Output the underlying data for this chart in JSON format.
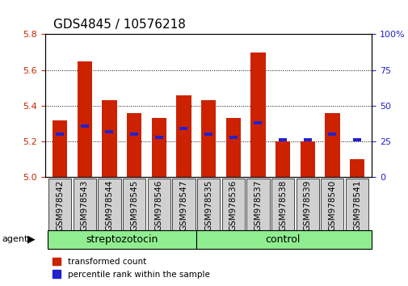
{
  "title": "GDS4845 / 10576218",
  "samples": [
    "GSM978542",
    "GSM978543",
    "GSM978544",
    "GSM978545",
    "GSM978546",
    "GSM978547",
    "GSM978535",
    "GSM978536",
    "GSM978537",
    "GSM978538",
    "GSM978539",
    "GSM978540",
    "GSM978541"
  ],
  "red_values": [
    5.32,
    5.65,
    5.43,
    5.36,
    5.33,
    5.46,
    5.43,
    5.33,
    5.7,
    5.2,
    5.2,
    5.36,
    5.1
  ],
  "blue_values_pct": [
    30,
    36,
    32,
    30,
    28,
    34,
    30,
    28,
    38,
    26,
    26,
    30,
    26
  ],
  "ylim_left": [
    5.0,
    5.8
  ],
  "ylim_right": [
    0,
    100
  ],
  "yticks_left": [
    5.0,
    5.2,
    5.4,
    5.6,
    5.8
  ],
  "yticks_right": [
    0,
    25,
    50,
    75,
    100
  ],
  "bar_width": 0.6,
  "red_color": "#CC2200",
  "blue_color": "#2222CC",
  "base_value": 5.0,
  "left_tick_color": "#CC2200",
  "right_tick_color": "#2222CC",
  "strep_color": "#90EE90",
  "ctrl_color": "#90EE90",
  "gray_color": "#D0D0D0",
  "legend_items": [
    "transformed count",
    "percentile rank within the sample"
  ],
  "title_fontsize": 11,
  "tick_fontsize": 8,
  "label_fontsize": 9
}
